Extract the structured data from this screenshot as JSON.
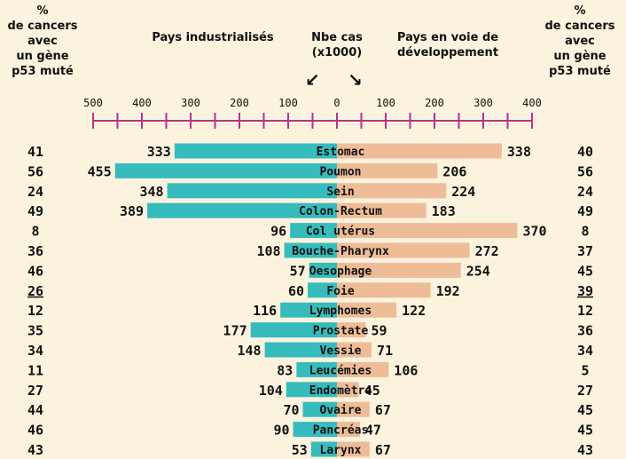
{
  "headers": {
    "left_pct": "%\nde cancers\navec\nun gène\np53 muté",
    "right_pct": "%\nde cancers\navec\nun gène\np53 muté",
    "industrialized": "Pays industrialisés",
    "cases": "Nbe cas\n(x1000)",
    "developing": "Pays en voie de\ndéveloppement"
  },
  "colors": {
    "background": "#fbf3de",
    "industrialized_bar": "#36bcbc",
    "developing_bar": "#efbc98",
    "axis": "#b5348a"
  },
  "chart_data": {
    "type": "bar",
    "orientation": "horizontal-diverging",
    "axis_ticks_left": [
      500,
      400,
      300,
      200,
      100
    ],
    "axis_ticks_right": [
      0,
      100,
      200,
      300,
      400
    ],
    "xlim_left": [
      0,
      500
    ],
    "xlim_right": [
      0,
      400
    ],
    "categories": [
      "Estomac",
      "Poumon",
      "Sein",
      "Colon-Rectum",
      "Col utérus",
      "Bouche-Pharynx",
      "Oesophage",
      "Foie",
      "Lymphomes",
      "Prostate",
      "Vessie",
      "Leucémies",
      "Endomètre",
      "Ovaire",
      "Pancréas",
      "Larynx"
    ],
    "series": [
      {
        "name": "Pays industrialisés",
        "values": [
          333,
          455,
          348,
          389,
          96,
          108,
          57,
          60,
          116,
          177,
          148,
          83,
          104,
          70,
          90,
          53
        ]
      },
      {
        "name": "Pays en voie de développement",
        "values": [
          338,
          206,
          224,
          183,
          370,
          272,
          254,
          192,
          122,
          59,
          71,
          106,
          45,
          67,
          47,
          67
        ]
      }
    ],
    "pct_p53_industrialized": [
      "41",
      "56",
      "24",
      "49",
      "8",
      "36",
      "46",
      "26",
      "12",
      "35",
      "34",
      "11",
      "27",
      "44",
      "46",
      "43"
    ],
    "pct_p53_developing": [
      "40",
      "56",
      "24",
      "49",
      "8",
      "37",
      "45",
      "39",
      "12",
      "36",
      "34",
      "5",
      "27",
      "45",
      "45",
      "43"
    ],
    "underlined_pct_row": "Foie"
  }
}
